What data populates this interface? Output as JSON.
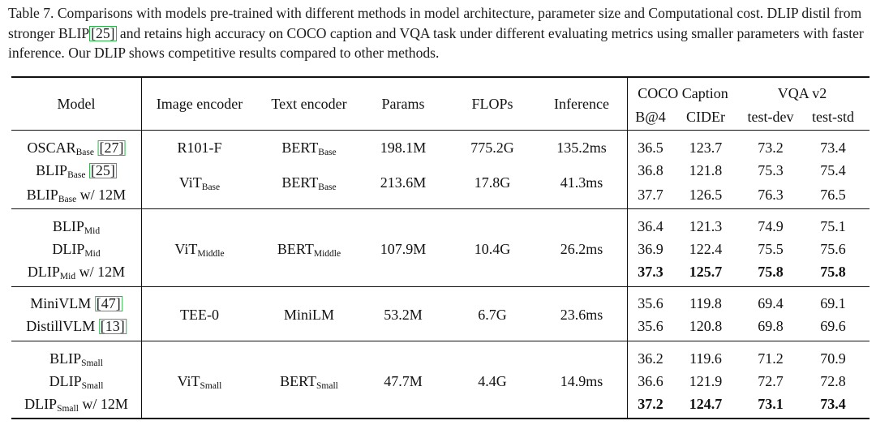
{
  "caption": {
    "label": "Table 7.",
    "text_1": " Comparisons with models pre-trained with different methods in model architecture, parameter size and Computational cost. DLIP distil from stronger BLIP",
    "cite": "[25]",
    "text_2": " and retains high accuracy on COCO caption and VQA task under different evaluating metrics using smaller parameters with faster inference. Our DLIP shows competitive results compared to other methods."
  },
  "headers": {
    "model": "Model",
    "image_encoder": "Image encoder",
    "text_encoder": "Text encoder",
    "params": "Params",
    "flops": "FLOPs",
    "inference": "Inference",
    "coco_group": "COCO Caption",
    "vqa_group": "VQA v2",
    "b4": "B@4",
    "cider": "CIDEr",
    "test_dev": "test-dev",
    "test_std": "test-std"
  },
  "groups": [
    {
      "image_encoder": {
        "main": "R101-F",
        "sub": ""
      },
      "text_encoder": {
        "main": "BERT",
        "sub": "Base"
      },
      "params": "198.1M",
      "flops": "775.2G",
      "inference": "135.2ms",
      "rows": [
        {
          "model": {
            "main": "OSCAR",
            "sub": "Base",
            "cite": "[27]",
            "suffix": ""
          },
          "b4": "36.5",
          "cider": "123.7",
          "test_dev": "73.2",
          "test_std": "73.4",
          "bold": false
        }
      ]
    },
    {
      "image_encoder": {
        "main": "ViT",
        "sub": "Base"
      },
      "text_encoder": {
        "main": "BERT",
        "sub": "Base"
      },
      "params": "213.6M",
      "flops": "17.8G",
      "inference": "41.3ms",
      "rows": [
        {
          "model": {
            "main": "BLIP",
            "sub": "Base",
            "cite": "[25]",
            "suffix": ""
          },
          "b4": "36.8",
          "cider": "121.8",
          "test_dev": "75.3",
          "test_std": "75.4",
          "bold": false
        },
        {
          "model": {
            "main": "BLIP",
            "sub": "Base",
            "cite": "",
            "suffix": " w/ 12M"
          },
          "b4": "37.7",
          "cider": "126.5",
          "test_dev": "76.3",
          "test_std": "76.5",
          "bold": false
        }
      ]
    },
    {
      "image_encoder": {
        "main": "ViT",
        "sub": "Middle"
      },
      "text_encoder": {
        "main": "BERT",
        "sub": "Middle"
      },
      "params": "107.9M",
      "flops": "10.4G",
      "inference": "26.2ms",
      "rows": [
        {
          "model": {
            "main": "BLIP",
            "sub": "Mid",
            "cite": "",
            "suffix": ""
          },
          "b4": "36.4",
          "cider": "121.3",
          "test_dev": "74.9",
          "test_std": "75.1",
          "bold": false
        },
        {
          "model": {
            "main": "DLIP",
            "sub": "Mid",
            "cite": "",
            "suffix": ""
          },
          "b4": "36.9",
          "cider": "122.4",
          "test_dev": "75.5",
          "test_std": "75.6",
          "bold": false
        },
        {
          "model": {
            "main": "DLIP",
            "sub": "Mid",
            "cite": "",
            "suffix": " w/ 12M"
          },
          "b4": "37.3",
          "cider": "125.7",
          "test_dev": "75.8",
          "test_std": "75.8",
          "bold": true
        }
      ]
    },
    {
      "image_encoder": {
        "main": "TEE-0",
        "sub": ""
      },
      "text_encoder": {
        "main": "MiniLM",
        "sub": ""
      },
      "params": "53.2M",
      "flops": "6.7G",
      "inference": "23.6ms",
      "rows": [
        {
          "model": {
            "main": "MiniVLM ",
            "sub": "",
            "cite": "[47]",
            "suffix": ""
          },
          "b4": "35.6",
          "cider": "119.8",
          "test_dev": "69.4",
          "test_std": "69.1",
          "bold": false
        },
        {
          "model": {
            "main": "DistillVLM ",
            "sub": "",
            "cite": "[13]",
            "suffix": ""
          },
          "b4": "35.6",
          "cider": "120.8",
          "test_dev": "69.8",
          "test_std": "69.6",
          "bold": false
        }
      ]
    },
    {
      "image_encoder": {
        "main": "ViT",
        "sub": "Small"
      },
      "text_encoder": {
        "main": "BERT",
        "sub": "Small"
      },
      "params": "47.7M",
      "flops": "4.4G",
      "inference": "14.9ms",
      "rows": [
        {
          "model": {
            "main": "BLIP",
            "sub": "Small",
            "cite": "",
            "suffix": ""
          },
          "b4": "36.2",
          "cider": "119.6",
          "test_dev": "71.2",
          "test_std": "70.9",
          "bold": false
        },
        {
          "model": {
            "main": "DLIP",
            "sub": "Small",
            "cite": "",
            "suffix": ""
          },
          "b4": "36.6",
          "cider": "121.9",
          "test_dev": "72.7",
          "test_std": "72.8",
          "bold": false
        },
        {
          "model": {
            "main": "DLIP",
            "sub": "Small",
            "cite": "",
            "suffix": " w/ 12M"
          },
          "b4": "37.2",
          "cider": "124.7",
          "test_dev": "73.1",
          "test_std": "73.4",
          "bold": true
        }
      ]
    }
  ]
}
